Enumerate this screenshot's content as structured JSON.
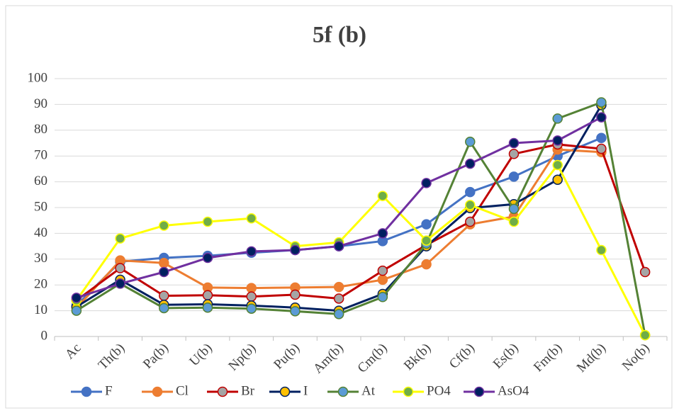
{
  "chart_data": {
    "type": "line",
    "title": "5f (b)",
    "categories": [
      "Ac",
      "Th(b)",
      "Pa(b)",
      "U(b)",
      "Np(b)",
      "Pu(b)",
      "Am(b)",
      "Cm(b)",
      "Bk(b)",
      "Cf(b)",
      "Es(b)",
      "Fm(b)",
      "Md(b)",
      "No(b)"
    ],
    "ylim": [
      0,
      100
    ],
    "yticks": [
      0,
      10,
      20,
      30,
      40,
      50,
      60,
      70,
      80,
      90,
      100
    ],
    "grid": true,
    "legend": "bottom",
    "series": [
      {
        "name": "F",
        "color": "#4472c4",
        "marker": "#4472c4",
        "values": [
          12,
          29,
          30.5,
          31.3,
          32.5,
          33.5,
          35,
          37,
          43.5,
          56,
          62,
          70,
          77,
          null
        ]
      },
      {
        "name": "Cl",
        "color": "#ed7d31",
        "marker": "#ed7d31",
        "values": [
          11,
          29.5,
          28.5,
          19,
          18.8,
          19,
          19.2,
          22,
          28,
          43.5,
          46.5,
          72.5,
          71.5,
          null
        ]
      },
      {
        "name": "Br",
        "color": "#c00000",
        "marker": "#a5a5a5",
        "values": [
          14,
          26.5,
          15.8,
          16,
          15.5,
          16.2,
          14.7,
          25.5,
          35.5,
          44.5,
          70.8,
          74.5,
          72.8,
          25
        ]
      },
      {
        "name": "I",
        "color": "#002060",
        "marker": "#ffc000",
        "values": [
          11.5,
          22,
          12.3,
          12.5,
          12,
          11.2,
          10,
          16.5,
          35,
          49.8,
          51.3,
          60.8,
          89.7,
          null
        ]
      },
      {
        "name": "At",
        "color": "#548235",
        "marker": "#5b9bd5",
        "values": [
          10,
          20.5,
          11,
          11.2,
          10.8,
          9.8,
          8.7,
          15.3,
          36,
          75.5,
          49.5,
          84.5,
          90.8,
          0.5
        ]
      },
      {
        "name": "PO4",
        "color": "#ffff00",
        "marker": "#70ad47",
        "values": [
          14,
          38,
          43,
          44.5,
          45.8,
          35,
          36.5,
          54.5,
          37.2,
          51,
          44.5,
          66.5,
          33.5,
          0.5
        ]
      },
      {
        "name": "AsO4",
        "color": "#7030a0",
        "marker": "#002060",
        "values": [
          15,
          20.5,
          25,
          30.5,
          33,
          33.5,
          35,
          40,
          59.5,
          67,
          75,
          76,
          85,
          null
        ]
      }
    ]
  }
}
